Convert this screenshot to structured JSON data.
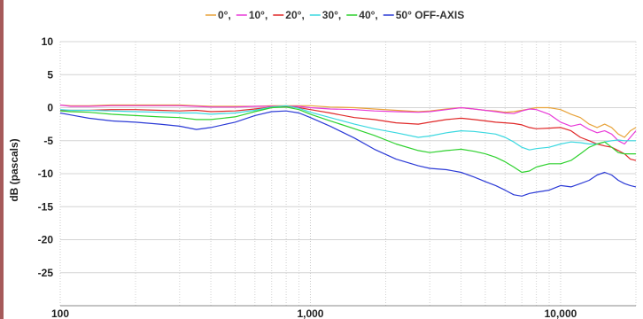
{
  "chart_data": {
    "type": "line",
    "title": "",
    "xlabel": "",
    "ylabel": "dB (pascals)",
    "x_scale": "log",
    "xlim": [
      100,
      20000
    ],
    "ylim": [
      -30,
      10
    ],
    "y_ticks": [
      "10",
      "5",
      "0",
      "-5",
      "-10",
      "-15",
      "-20",
      "-25"
    ],
    "x_ticks": [
      {
        "value": 100,
        "label": "100"
      },
      {
        "value": 1000,
        "label": "1,000"
      },
      {
        "value": 10000,
        "label": "10,000"
      }
    ],
    "grid": true,
    "legend_position": "top-center",
    "legend_suffix": "OFF-AXIS",
    "series": [
      {
        "name": "0°,",
        "color": "#e8a33a",
        "x": [
          100,
          110,
          130,
          160,
          200,
          250,
          300,
          350,
          400,
          500,
          600,
          700,
          800,
          900,
          1000,
          1200,
          1500,
          1800,
          2200,
          2700,
          3000,
          3500,
          4000,
          4500,
          5000,
          5500,
          6000,
          6500,
          7000,
          7500,
          8000,
          9000,
          10000,
          11000,
          12000,
          13000,
          14000,
          15000,
          16000,
          17000,
          18000,
          19000,
          20000
        ],
        "y": [
          0.4,
          0.3,
          0.3,
          0.4,
          0.4,
          0.4,
          0.4,
          0.3,
          0.2,
          0.2,
          0.2,
          0.3,
          0.3,
          0.3,
          0.3,
          0.1,
          0.0,
          -0.2,
          -0.4,
          -0.6,
          -0.5,
          -0.2,
          0.0,
          -0.2,
          -0.4,
          -0.5,
          -0.7,
          -0.6,
          -0.4,
          -0.2,
          0.0,
          0.0,
          -0.3,
          -1.0,
          -1.5,
          -2.5,
          -3.0,
          -2.5,
          -3.0,
          -4.0,
          -4.5,
          -3.5,
          -3.0
        ]
      },
      {
        "name": "10°,",
        "color": "#e83ad8",
        "x": [
          100,
          110,
          130,
          160,
          200,
          250,
          300,
          350,
          400,
          500,
          600,
          700,
          800,
          900,
          1000,
          1200,
          1500,
          1800,
          2200,
          2700,
          3000,
          3500,
          4000,
          4500,
          5000,
          5500,
          6000,
          6500,
          7000,
          7500,
          8000,
          9000,
          10000,
          11000,
          12000,
          13000,
          14000,
          15000,
          16000,
          17000,
          18000,
          19000,
          20000
        ],
        "y": [
          0.4,
          0.2,
          0.2,
          0.3,
          0.3,
          0.3,
          0.3,
          0.2,
          0.1,
          0.1,
          0.2,
          0.2,
          0.2,
          0.2,
          0.0,
          -0.2,
          -0.3,
          -0.5,
          -0.6,
          -0.7,
          -0.6,
          -0.3,
          0.0,
          -0.2,
          -0.4,
          -0.6,
          -0.8,
          -0.9,
          -0.5,
          -0.2,
          -0.3,
          -1.0,
          -2.2,
          -2.8,
          -2.5,
          -3.3,
          -3.8,
          -3.5,
          -4.0,
          -5.0,
          -5.5,
          -4.5,
          -3.5
        ]
      },
      {
        "name": "20°,",
        "color": "#e02828",
        "x": [
          100,
          110,
          130,
          160,
          200,
          250,
          300,
          350,
          400,
          500,
          600,
          700,
          800,
          900,
          1000,
          1200,
          1500,
          1800,
          2200,
          2700,
          3000,
          3500,
          4000,
          4500,
          5000,
          5500,
          6000,
          6500,
          7000,
          7500,
          8000,
          9000,
          10000,
          11000,
          12000,
          13000,
          14000,
          15000,
          16000,
          17000,
          18000,
          19000,
          20000
        ],
        "y": [
          -0.4,
          -0.4,
          -0.4,
          -0.3,
          -0.3,
          -0.4,
          -0.5,
          -0.4,
          -0.6,
          -0.5,
          -0.2,
          0.1,
          0.2,
          0.0,
          -0.3,
          -0.8,
          -1.5,
          -1.8,
          -2.3,
          -2.5,
          -2.2,
          -1.8,
          -1.6,
          -1.8,
          -2.0,
          -2.2,
          -2.3,
          -2.4,
          -2.6,
          -3.0,
          -3.2,
          -3.1,
          -3.0,
          -3.5,
          -4.5,
          -5.0,
          -5.5,
          -5.8,
          -6.0,
          -6.5,
          -7.0,
          -7.8,
          -8.0
        ]
      },
      {
        "name": "30°,",
        "color": "#3ad8e0",
        "x": [
          100,
          110,
          130,
          160,
          200,
          250,
          300,
          350,
          400,
          500,
          600,
          700,
          800,
          900,
          1000,
          1200,
          1500,
          1800,
          2200,
          2700,
          3000,
          3500,
          4000,
          4500,
          5000,
          5500,
          6000,
          6500,
          7000,
          7500,
          8000,
          9000,
          10000,
          11000,
          12000,
          13000,
          14000,
          15000,
          16000,
          17000,
          18000,
          19000,
          20000
        ],
        "y": [
          -0.3,
          -0.4,
          -0.4,
          -0.5,
          -0.6,
          -0.7,
          -0.8,
          -0.8,
          -1.0,
          -0.8,
          -0.4,
          0.1,
          0.3,
          -0.1,
          -0.7,
          -1.5,
          -2.5,
          -3.2,
          -3.8,
          -4.5,
          -4.3,
          -3.8,
          -3.5,
          -3.6,
          -3.8,
          -4.0,
          -4.5,
          -5.2,
          -6.0,
          -6.4,
          -6.2,
          -6.0,
          -5.5,
          -5.2,
          -5.3,
          -5.5,
          -5.5,
          -5.2,
          -5.0,
          -4.9,
          -5.0,
          -5.0,
          -5.0
        ]
      },
      {
        "name": "40°,",
        "color": "#2ed12e",
        "x": [
          100,
          110,
          130,
          160,
          200,
          250,
          300,
          350,
          400,
          500,
          600,
          700,
          800,
          900,
          1000,
          1200,
          1500,
          1800,
          2200,
          2700,
          3000,
          3500,
          4000,
          4500,
          5000,
          5500,
          6000,
          6500,
          7000,
          7500,
          8000,
          9000,
          10000,
          11000,
          12000,
          13000,
          14000,
          15000,
          16000,
          17000,
          18000,
          19000,
          20000
        ],
        "y": [
          -0.5,
          -0.6,
          -0.7,
          -1.0,
          -1.2,
          -1.4,
          -1.5,
          -1.8,
          -1.8,
          -1.4,
          -0.6,
          0.0,
          0.1,
          -0.3,
          -1.0,
          -2.0,
          -3.2,
          -4.2,
          -5.5,
          -6.5,
          -6.8,
          -6.5,
          -6.3,
          -6.6,
          -7.0,
          -7.5,
          -8.2,
          -9.0,
          -9.8,
          -9.6,
          -9.0,
          -8.5,
          -8.5,
          -8.0,
          -7.0,
          -6.0,
          -5.5,
          -5.2,
          -6.0,
          -6.8,
          -7.0,
          -7.0,
          -7.0
        ]
      },
      {
        "name": "50° OFF-AXIS",
        "color": "#2b3ad6",
        "x": [
          100,
          110,
          130,
          160,
          200,
          250,
          300,
          350,
          400,
          500,
          600,
          700,
          800,
          900,
          1000,
          1200,
          1500,
          1800,
          2200,
          2700,
          3000,
          3500,
          4000,
          4500,
          5000,
          5500,
          6000,
          6500,
          7000,
          7500,
          8000,
          9000,
          10000,
          11000,
          12000,
          13000,
          14000,
          15000,
          16000,
          17000,
          18000,
          19000,
          20000
        ],
        "y": [
          -0.8,
          -1.1,
          -1.6,
          -2.0,
          -2.2,
          -2.5,
          -2.8,
          -3.3,
          -3.0,
          -2.2,
          -1.2,
          -0.6,
          -0.5,
          -0.8,
          -1.5,
          -2.8,
          -4.6,
          -6.3,
          -7.8,
          -8.8,
          -9.2,
          -9.4,
          -9.8,
          -10.5,
          -11.2,
          -11.8,
          -12.5,
          -13.2,
          -13.4,
          -13.0,
          -12.8,
          -12.5,
          -11.8,
          -12.0,
          -11.5,
          -11.0,
          -10.2,
          -9.8,
          -10.2,
          -11.0,
          -11.5,
          -11.8,
          -12.0
        ]
      }
    ]
  }
}
